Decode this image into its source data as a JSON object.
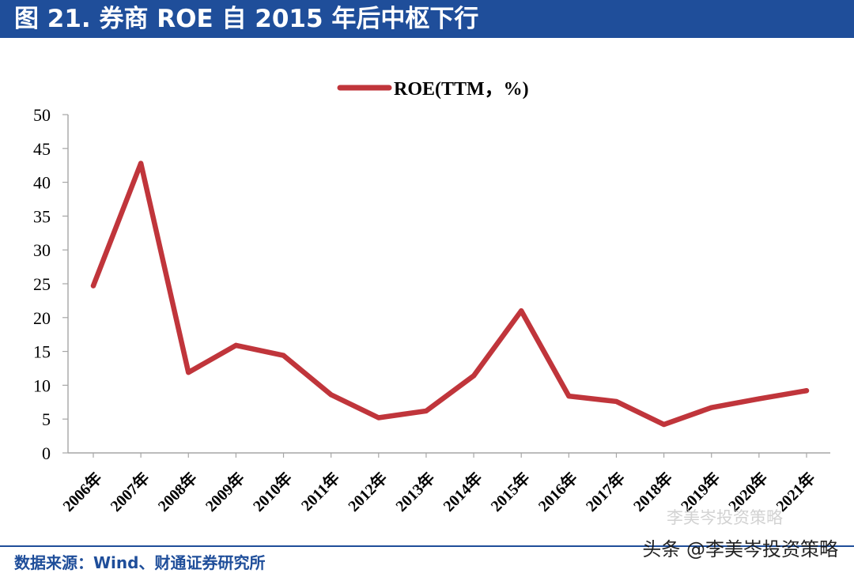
{
  "header": {
    "title": "图 21. 券商 ROE 自 2015 年后中枢下行"
  },
  "footer": {
    "source": "数据来源：Wind、财通证券研究所",
    "watermark": "头条 @李美岑投资策略",
    "ghost_watermark": "李美岑投资策略"
  },
  "colors": {
    "header_bg": "#1f4e9a",
    "line": "#c0353b",
    "axis": "#a6a6a6",
    "text": "#000000",
    "source_text": "#1f4e9a"
  },
  "chart_data": {
    "type": "line",
    "title": "",
    "xlabel": "",
    "ylabel": "",
    "categories": [
      "2006年",
      "2007年",
      "2008年",
      "2009年",
      "2010年",
      "2011年",
      "2012年",
      "2013年",
      "2014年",
      "2015年",
      "2016年",
      "2017年",
      "2018年",
      "2019年",
      "2020年",
      "2021年"
    ],
    "series": [
      {
        "name": "ROE(TTM，%)",
        "values": [
          24.7,
          42.8,
          11.9,
          15.9,
          14.4,
          8.6,
          5.2,
          6.2,
          11.4,
          21.0,
          8.4,
          7.6,
          4.2,
          6.7,
          8.0,
          9.2
        ]
      }
    ],
    "ylim": [
      0,
      50
    ],
    "yticks": [
      0,
      5,
      10,
      15,
      20,
      25,
      30,
      35,
      40,
      45,
      50
    ],
    "grid": false,
    "legend_position": "top-center"
  }
}
